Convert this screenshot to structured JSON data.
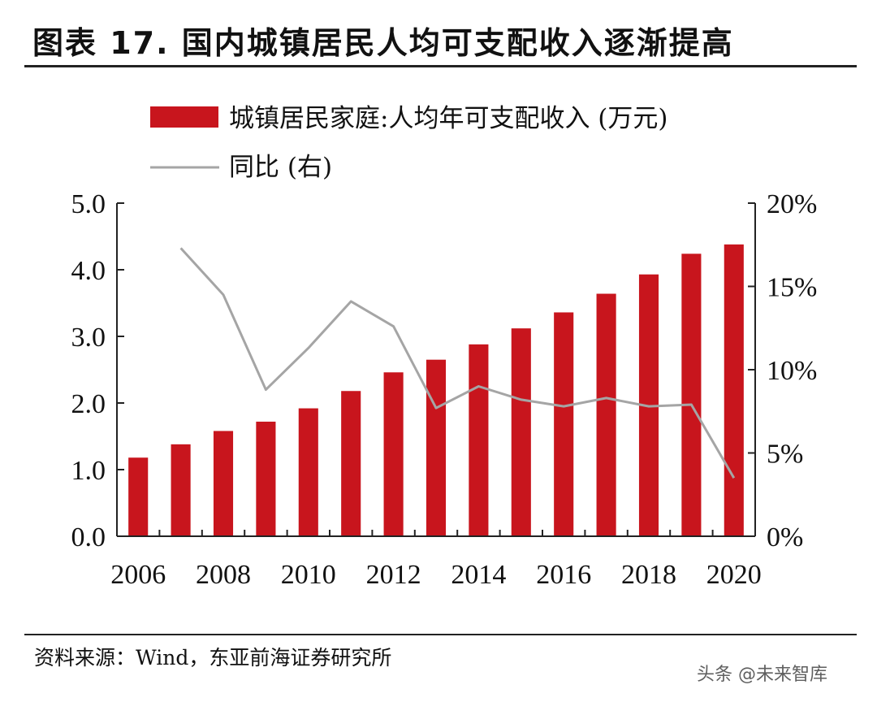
{
  "title": "图表 17. 国内城镇居民人均可支配收入逐渐提高",
  "source": "资料来源：Wind，东亚前海证券研究所",
  "watermark": "头条 @未来智库",
  "colors": {
    "bar": "#c8151d",
    "line": "#a5a5a5",
    "axis": "#222222"
  },
  "chart_data": {
    "type": "bar",
    "x": [
      2006,
      2007,
      2008,
      2009,
      2010,
      2011,
      2012,
      2013,
      2014,
      2015,
      2016,
      2017,
      2018,
      2019,
      2020
    ],
    "xticks": [
      "2006",
      "2008",
      "2010",
      "2012",
      "2014",
      "2016",
      "2018",
      "2020"
    ],
    "series": [
      {
        "name": "城镇居民家庭:人均年可支配收入 (万元)",
        "type": "bar",
        "axis": "left",
        "values": [
          1.18,
          1.38,
          1.58,
          1.72,
          1.92,
          2.18,
          2.46,
          2.65,
          2.88,
          3.12,
          3.36,
          3.64,
          3.93,
          4.24,
          4.38
        ]
      },
      {
        "name": "同比 (右)",
        "type": "line",
        "axis": "right",
        "values": [
          null,
          17.3,
          14.5,
          8.8,
          11.3,
          14.1,
          12.6,
          7.7,
          9.0,
          8.2,
          7.8,
          8.3,
          7.8,
          7.9,
          3.5
        ]
      }
    ],
    "ylim_left": [
      0,
      5
    ],
    "yticks_left": [
      "0.0",
      "1.0",
      "2.0",
      "3.0",
      "4.0",
      "5.0"
    ],
    "ylim_right": [
      0,
      20
    ],
    "yticks_right": [
      "0%",
      "5%",
      "10%",
      "15%",
      "20%"
    ],
    "legend_position": "top-left",
    "grid": false
  }
}
